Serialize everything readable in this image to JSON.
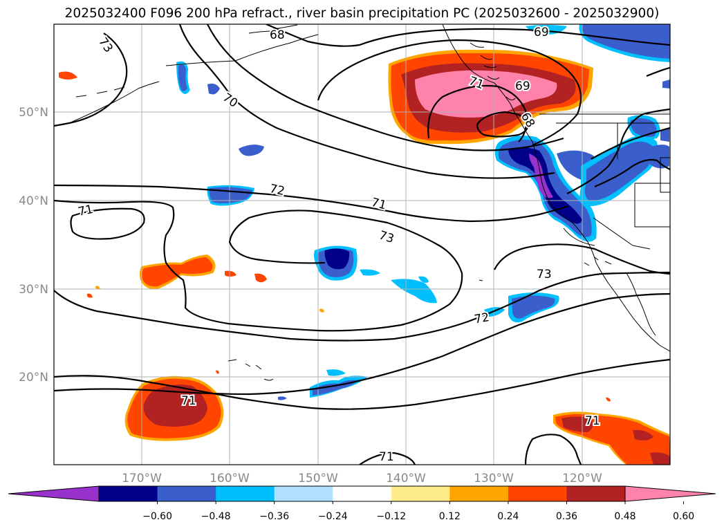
{
  "title": "2025032400 F096 200 hPa refract., river basin precipitation PC (2025032600 - 2025032900)",
  "lat_labels": [
    "50°N",
    "40°N",
    "30°N",
    "20°N"
  ],
  "lon_labels": [
    "170°W",
    "160°W",
    "150°W",
    "140°W",
    "130°W",
    "120°W"
  ],
  "contour_labels": [
    "73",
    "68",
    "69",
    "70",
    "72",
    "71",
    "73",
    "69",
    "68",
    "71",
    "73",
    "71",
    "72",
    "71",
    "71",
    "71"
  ],
  "colorbar": {
    "colors": [
      "#9932cc",
      "#00008b",
      "#3a5fcd",
      "#00bfff",
      "#b0e2ff",
      "#ffffff",
      "#ffec8b",
      "#ffa500",
      "#ff4500",
      "#b22222",
      "#ff82ab"
    ],
    "ticks": [
      "−0.60",
      "−0.48",
      "−0.36",
      "−0.24",
      "−0.12",
      "0.12",
      "0.24",
      "0.36",
      "0.48",
      "0.60"
    ]
  }
}
